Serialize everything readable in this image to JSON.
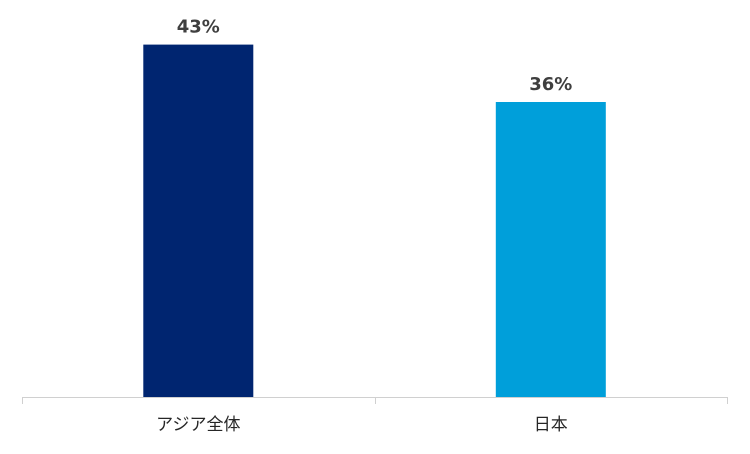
{
  "chart_data": {
    "type": "bar",
    "categories": [
      "アジア全体",
      "日本"
    ],
    "values": [
      43,
      36
    ],
    "value_labels": [
      "43%",
      "36%"
    ],
    "colors": [
      "#002570",
      "#009fda"
    ],
    "ylim": [
      0,
      46
    ],
    "grid": false,
    "legend": "none"
  }
}
